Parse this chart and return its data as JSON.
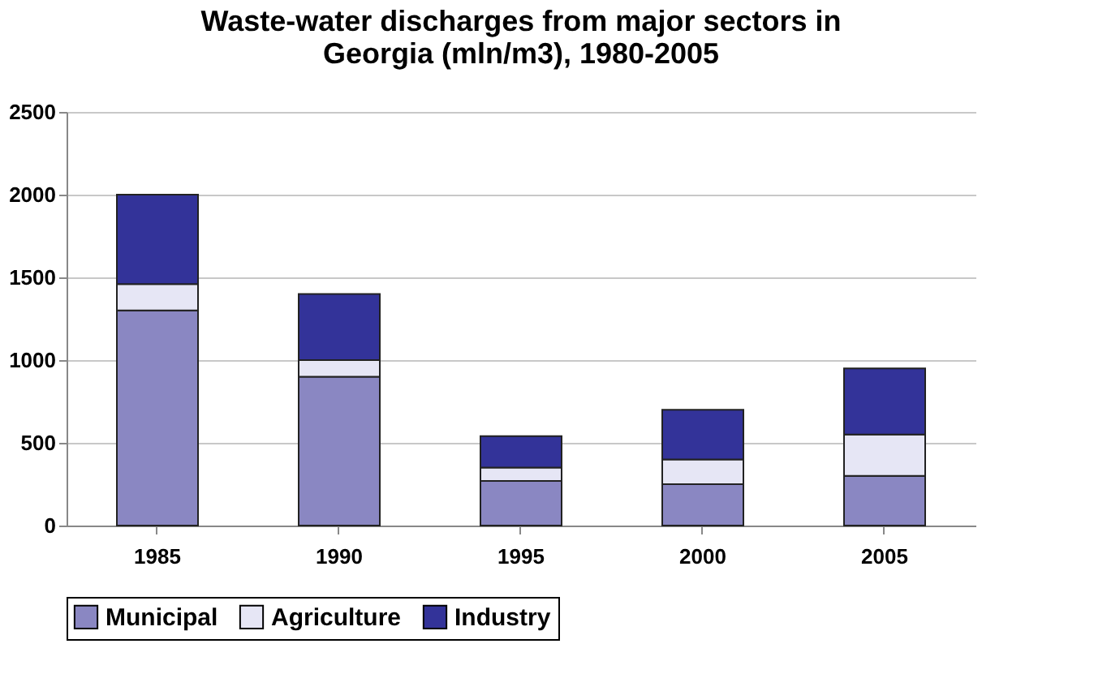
{
  "chart_data": {
    "type": "bar",
    "stacked": true,
    "title": [
      "Waste-water discharges from major sectors in",
      "Georgia (mln/m3), 1980-2005"
    ],
    "categories": [
      "1985",
      "1990",
      "1995",
      "2000",
      "2005"
    ],
    "series": [
      {
        "name": "Municipal",
        "color": "#8a87c2",
        "values": [
          1300,
          900,
          270,
          250,
          300
        ]
      },
      {
        "name": "Agriculture",
        "color": "#e6e6f5",
        "values": [
          160,
          100,
          80,
          150,
          250
        ]
      },
      {
        "name": "Industry",
        "color": "#333399",
        "values": [
          540,
          400,
          190,
          300,
          400
        ]
      }
    ],
    "ylim": [
      0,
      2500
    ],
    "yticks": [
      0,
      500,
      1000,
      1500,
      2000,
      2500
    ],
    "grid": "y",
    "legend": "bottom"
  }
}
